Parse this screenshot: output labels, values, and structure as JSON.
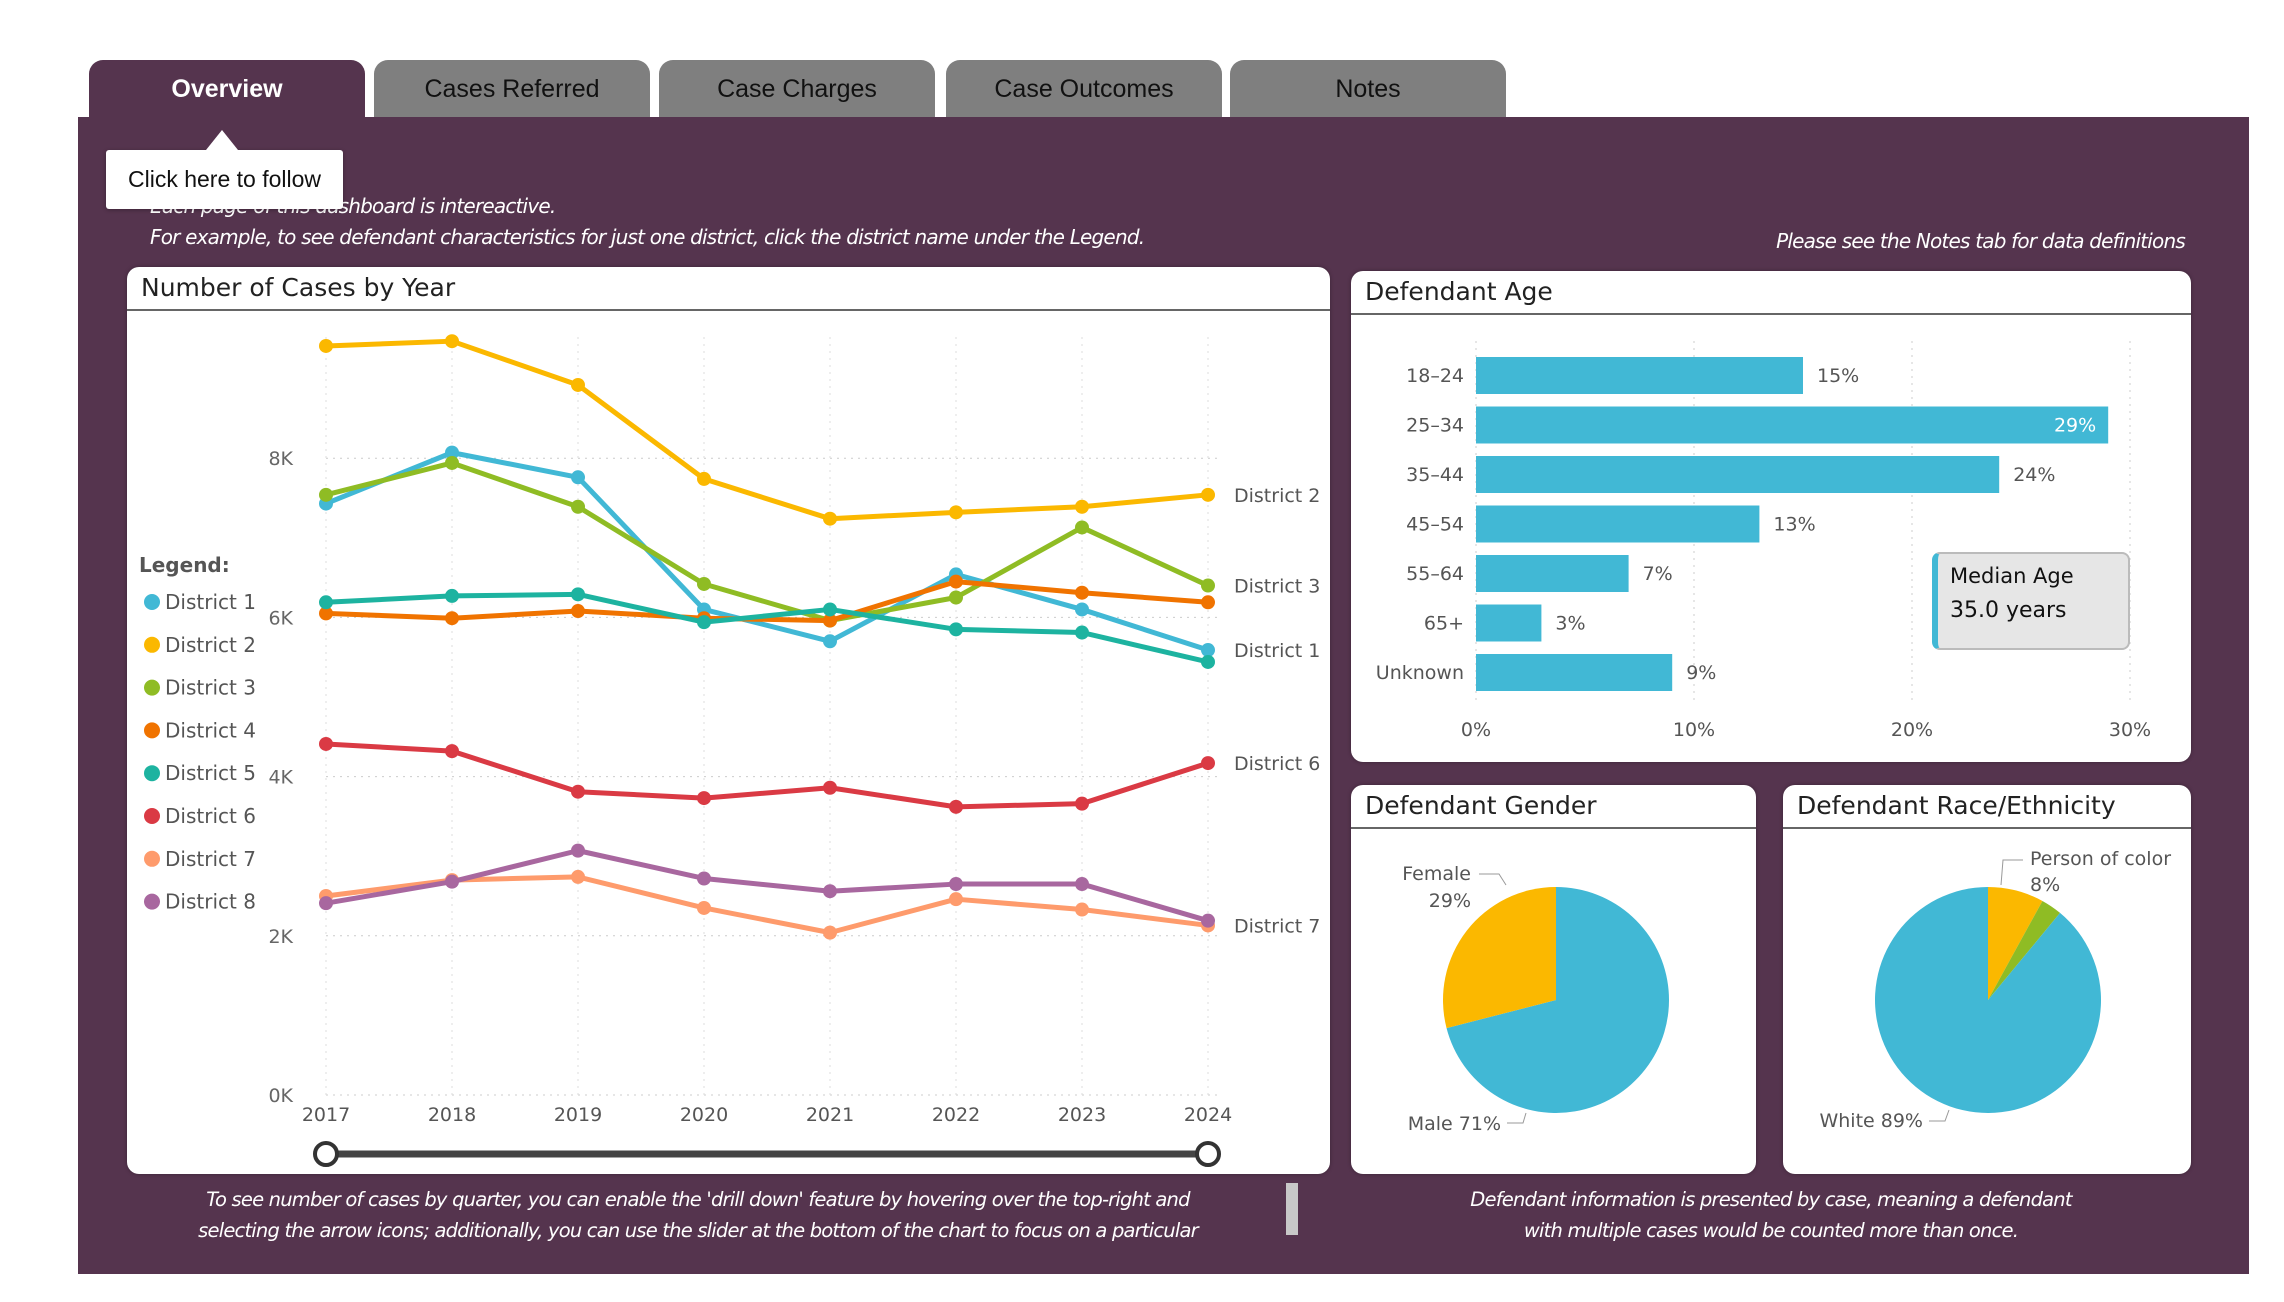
{
  "tabs": [
    "Overview",
    "Cases Referred",
    "Case Charges",
    "Case Outcomes",
    "Notes"
  ],
  "tooltip": "Click here to follow",
  "intro": {
    "line1": "Each page of this dashboard is intereactive.",
    "line2": "For example, to see defendant characteristics for just one district, click the district name under the Legend.",
    "right": "Please see the Notes tab for data definitions"
  },
  "footer": {
    "left1": "To see number of cases by quarter, you can enable the 'drill down' feature by hovering over the top-right and",
    "left2": "selecting the arrow icons; additionally, you can use the slider at the bottom of the chart to focus on a particular",
    "right1": "Defendant information is presented by case, meaning a defendant",
    "right2": "with multiple cases would be counted more than once."
  },
  "median": {
    "label": "Median Age",
    "value": "35.0 years"
  },
  "chart_data": [
    {
      "type": "line",
      "title": "Number of Cases by Year",
      "legend_title": "Legend:",
      "legend_placement": "left",
      "x": [
        "2017",
        "2018",
        "2019",
        "2020",
        "2021",
        "2022",
        "2023",
        "2024"
      ],
      "ylim": [
        0,
        10000
      ],
      "yticks": [
        0,
        2000,
        4000,
        6000,
        8000
      ],
      "ytick_labels": [
        "0K",
        "2K",
        "4K",
        "6K",
        "8K"
      ],
      "slider_range": [
        "2017",
        "2024"
      ],
      "series": [
        {
          "name": "District 1",
          "color": "#41b8d5",
          "end_label": true,
          "values": [
            7430,
            8070,
            7760,
            6100,
            5700,
            6540,
            6100,
            5590
          ]
        },
        {
          "name": "District 2",
          "color": "#fbb800",
          "end_label": true,
          "values": [
            9410,
            9470,
            8920,
            7740,
            7240,
            7320,
            7390,
            7540
          ]
        },
        {
          "name": "District 3",
          "color": "#8fbc24",
          "end_label": true,
          "values": [
            7540,
            7940,
            7390,
            6420,
            5960,
            6250,
            7130,
            6400
          ]
        },
        {
          "name": "District 4",
          "color": "#f07300",
          "end_label": false,
          "values": [
            6050,
            5990,
            6080,
            5990,
            5960,
            6450,
            6310,
            6190
          ]
        },
        {
          "name": "District 5",
          "color": "#1db3a0",
          "end_label": false,
          "values": [
            6190,
            6270,
            6290,
            5940,
            6100,
            5850,
            5810,
            5440
          ]
        },
        {
          "name": "District 6",
          "color": "#da3a44",
          "end_label": true,
          "values": [
            4410,
            4320,
            3810,
            3730,
            3860,
            3620,
            3660,
            4170
          ]
        },
        {
          "name": "District 7",
          "color": "#fe9b6c",
          "end_label": true,
          "values": [
            2500,
            2700,
            2740,
            2350,
            2040,
            2460,
            2330,
            2130
          ]
        },
        {
          "name": "District 8",
          "color": "#a8679f",
          "end_label": false,
          "values": [
            2410,
            2680,
            3070,
            2720,
            2560,
            2650,
            2650,
            2190
          ]
        }
      ]
    },
    {
      "type": "bar",
      "orientation": "horizontal",
      "title": "Defendant Age",
      "color": "#41b8d5",
      "categories": [
        "18–24",
        "25–34",
        "35–44",
        "45–54",
        "55–64",
        "65+",
        "Unknown"
      ],
      "values": [
        15,
        29,
        24,
        13,
        7,
        3,
        9
      ],
      "value_labels": [
        "15%",
        "29%",
        "24%",
        "13%",
        "7%",
        "3%",
        "9%"
      ],
      "xlim": [
        0,
        30
      ],
      "xticks": [
        "0%",
        "10%",
        "20%",
        "30%"
      ]
    },
    {
      "type": "pie",
      "title": "Defendant Gender",
      "slices": [
        {
          "name": "Male",
          "value": 71,
          "label": "Male 71%",
          "color": "#41b8d5"
        },
        {
          "name": "Female",
          "value": 29,
          "label1": "Female",
          "label2": "29%",
          "color": "#fbb800"
        }
      ]
    },
    {
      "type": "pie",
      "title": "Defendant Race/Ethnicity",
      "slices": [
        {
          "name": "Person of color",
          "value": 8,
          "label1": "Person of color",
          "label2": "8%",
          "color": "#fbb800"
        },
        {
          "value": 3,
          "color": "#8fbc24"
        },
        {
          "name": "White",
          "value": 89,
          "label": "White 89%",
          "color": "#41b8d5"
        }
      ]
    }
  ]
}
